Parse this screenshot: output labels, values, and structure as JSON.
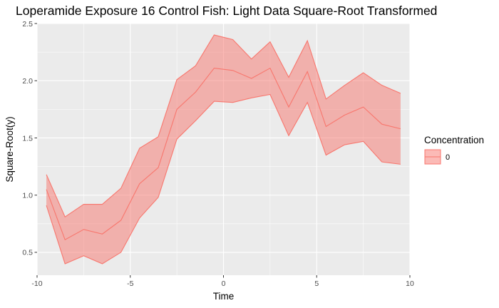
{
  "chart_data": {
    "type": "area",
    "title": "Loperamide Exposure 16 Control Fish: Light Data Square-Root Transformed",
    "xlabel": "Time",
    "ylabel": "Square-Root(y)",
    "xlim": [
      -10,
      10
    ],
    "ylim": [
      0.3,
      2.5
    ],
    "x_ticks": [
      -10,
      -5,
      0,
      5,
      10
    ],
    "x_tick_labels": [
      "-10",
      "-5",
      "0",
      "5",
      "10"
    ],
    "y_ticks": [
      0.5,
      1.0,
      1.5,
      2.0,
      2.5
    ],
    "y_tick_labels": [
      "0.5",
      "1.0",
      "1.5",
      "2.0",
      "2.5"
    ],
    "grid": true,
    "legend": {
      "title": "Concentration",
      "position": "right",
      "entries": [
        "0"
      ]
    },
    "x": [
      -9.5,
      -8.5,
      -7.5,
      -6.5,
      -5.5,
      -4.5,
      -3.5,
      -2.5,
      -1.5,
      -0.5,
      0.5,
      1.5,
      2.5,
      3.5,
      4.5,
      5.5,
      6.5,
      7.5,
      8.5,
      9.5
    ],
    "series": [
      {
        "name": "0",
        "mean": [
          1.05,
          0.61,
          0.7,
          0.66,
          0.78,
          1.1,
          1.24,
          1.75,
          1.9,
          2.11,
          2.09,
          2.02,
          2.11,
          1.77,
          2.08,
          1.6,
          1.7,
          1.77,
          1.62,
          1.58
        ],
        "lower": [
          0.91,
          0.4,
          0.47,
          0.4,
          0.5,
          0.8,
          0.98,
          1.49,
          1.65,
          1.82,
          1.81,
          1.85,
          1.88,
          1.52,
          1.81,
          1.35,
          1.44,
          1.47,
          1.29,
          1.27
        ],
        "upper": [
          1.18,
          0.81,
          0.92,
          0.92,
          1.06,
          1.41,
          1.51,
          2.01,
          2.13,
          2.4,
          2.36,
          2.19,
          2.34,
          2.03,
          2.35,
          1.84,
          1.96,
          2.07,
          1.96,
          1.89
        ]
      }
    ],
    "colors": {
      "line": "#f8766d",
      "fill": "#f8766d",
      "panel": "#ebebeb",
      "grid": "#ffffff"
    }
  }
}
